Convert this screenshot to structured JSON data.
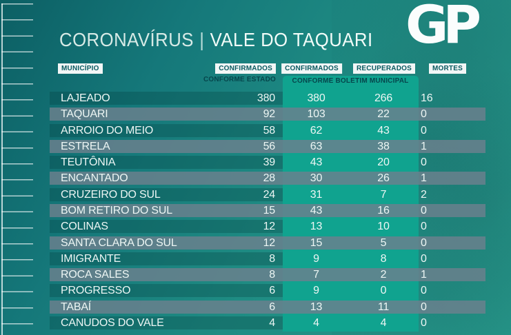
{
  "header": {
    "title_left": "CORONAVÍRUS",
    "title_separator": "|",
    "title_right": "VALE DO TAQUARI",
    "logo_text": "GP"
  },
  "columns": {
    "municipality": "MUNICÍPIO",
    "confirmed_state": "CONFIRMADOS",
    "confirmed_state_sub": "CONFORME ESTADO",
    "confirmed_municipal": "CONFIRMADOS",
    "recovered": "RECUPERADOS",
    "municipal_sub": "CONFORME BOLETIM MUNICIPAL",
    "deaths": "MORTES"
  },
  "chart_data": {
    "type": "table",
    "title": "CORONAVÍRUS | VALE DO TAQUARI",
    "columns": [
      "MUNICÍPIO",
      "CONFIRMADOS CONFORME ESTADO",
      "CONFIRMADOS CONFORME BOLETIM MUNICIPAL",
      "RECUPERADOS CONFORME BOLETIM MUNICIPAL",
      "MORTES"
    ],
    "rows": [
      {
        "municipio": "LAJEADO",
        "confirmados_estado": 380,
        "confirmados_municipal": 380,
        "recuperados": 266,
        "mortes": 16
      },
      {
        "municipio": "TAQUARI",
        "confirmados_estado": 92,
        "confirmados_municipal": 103,
        "recuperados": 22,
        "mortes": 0
      },
      {
        "municipio": "ARROIO DO MEIO",
        "confirmados_estado": 58,
        "confirmados_municipal": 62,
        "recuperados": 43,
        "mortes": 0
      },
      {
        "municipio": "ESTRELA",
        "confirmados_estado": 56,
        "confirmados_municipal": 63,
        "recuperados": 38,
        "mortes": 1
      },
      {
        "municipio": "TEUTÔNIA",
        "confirmados_estado": 39,
        "confirmados_municipal": 43,
        "recuperados": 20,
        "mortes": 0
      },
      {
        "municipio": "ENCANTADO",
        "confirmados_estado": 28,
        "confirmados_municipal": 30,
        "recuperados": 26,
        "mortes": 1
      },
      {
        "municipio": "CRUZEIRO DO SUL",
        "confirmados_estado": 24,
        "confirmados_municipal": 31,
        "recuperados": 7,
        "mortes": 2
      },
      {
        "municipio": "BOM RETIRO DO SUL",
        "confirmados_estado": 15,
        "confirmados_municipal": 43,
        "recuperados": 16,
        "mortes": 0
      },
      {
        "municipio": "COLINAS",
        "confirmados_estado": 12,
        "confirmados_municipal": 13,
        "recuperados": 10,
        "mortes": 0
      },
      {
        "municipio": "SANTA CLARA DO SUL",
        "confirmados_estado": 12,
        "confirmados_municipal": 15,
        "recuperados": 5,
        "mortes": 0
      },
      {
        "municipio": "IMIGRANTE",
        "confirmados_estado": 8,
        "confirmados_municipal": 9,
        "recuperados": 8,
        "mortes": 0
      },
      {
        "municipio": "ROCA SALES",
        "confirmados_estado": 8,
        "confirmados_municipal": 7,
        "recuperados": 2,
        "mortes": 1
      },
      {
        "municipio": "PROGRESSO",
        "confirmados_estado": 6,
        "confirmados_municipal": 9,
        "recuperados": 0,
        "mortes": 0
      },
      {
        "municipio": "TABAÍ",
        "confirmados_estado": 6,
        "confirmados_municipal": 13,
        "recuperados": 11,
        "mortes": 0
      },
      {
        "municipio": "CANUDOS DO VALE",
        "confirmados_estado": 4,
        "confirmados_municipal": 4,
        "recuperados": 4,
        "mortes": 0
      }
    ]
  },
  "colors": {
    "background_top": "#0c5f64",
    "background_bottom": "#27998b",
    "municipal_band": "#10a38f",
    "stripe_gray": "#6c808e",
    "chip_background": "#f2f6f6",
    "chip_text": "#0a5a60",
    "row_text": "#edf6f4"
  }
}
